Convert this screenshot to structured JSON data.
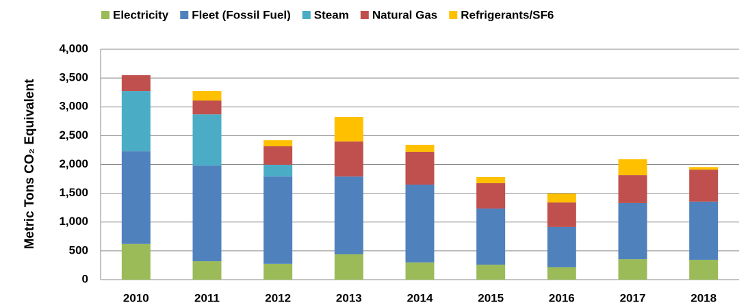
{
  "chart_data": {
    "type": "stacked_bar",
    "y_label": "Metric Tons CO₂ Equivalent",
    "categories": [
      "2010",
      "2011",
      "2012",
      "2013",
      "2014",
      "2015",
      "2016",
      "2017",
      "2018"
    ],
    "series": [
      {
        "name": "Electricity",
        "color": "#9bbb59",
        "values": [
          620,
          320,
          275,
          440,
          300,
          260,
          215,
          355,
          345
        ]
      },
      {
        "name": "Fleet (Fossil Fuel)",
        "color": "#4f81bd",
        "values": [
          1610,
          1660,
          1515,
          1350,
          1350,
          975,
          700,
          975,
          1010
        ]
      },
      {
        "name": "Steam",
        "color": "#4bacc6",
        "values": [
          1045,
          890,
          205,
          0,
          0,
          0,
          0,
          0,
          0
        ]
      },
      {
        "name": "Natural Gas",
        "color": "#c0504d",
        "values": [
          275,
          240,
          320,
          610,
          570,
          440,
          425,
          485,
          555
        ]
      },
      {
        "name": "Refrigerants/SF6",
        "color": "#ffc000",
        "values": [
          0,
          165,
          105,
          425,
          120,
          105,
          155,
          275,
          45
        ]
      }
    ],
    "ylim": [
      0,
      4000
    ],
    "yticks": [
      0,
      500,
      {
        "value": 1000,
        "label": "1,000"
      },
      {
        "value": 1500,
        "label": "1,500"
      },
      {
        "value": 2000,
        "label": "2,000"
      },
      {
        "value": 2500,
        "label": "2,500"
      },
      {
        "value": 3000,
        "label": "3,000"
      },
      {
        "value": 3500,
        "label": "3,500"
      },
      {
        "value": 4000,
        "label": "4,000"
      }
    ],
    "grid": true,
    "legend": "top"
  }
}
